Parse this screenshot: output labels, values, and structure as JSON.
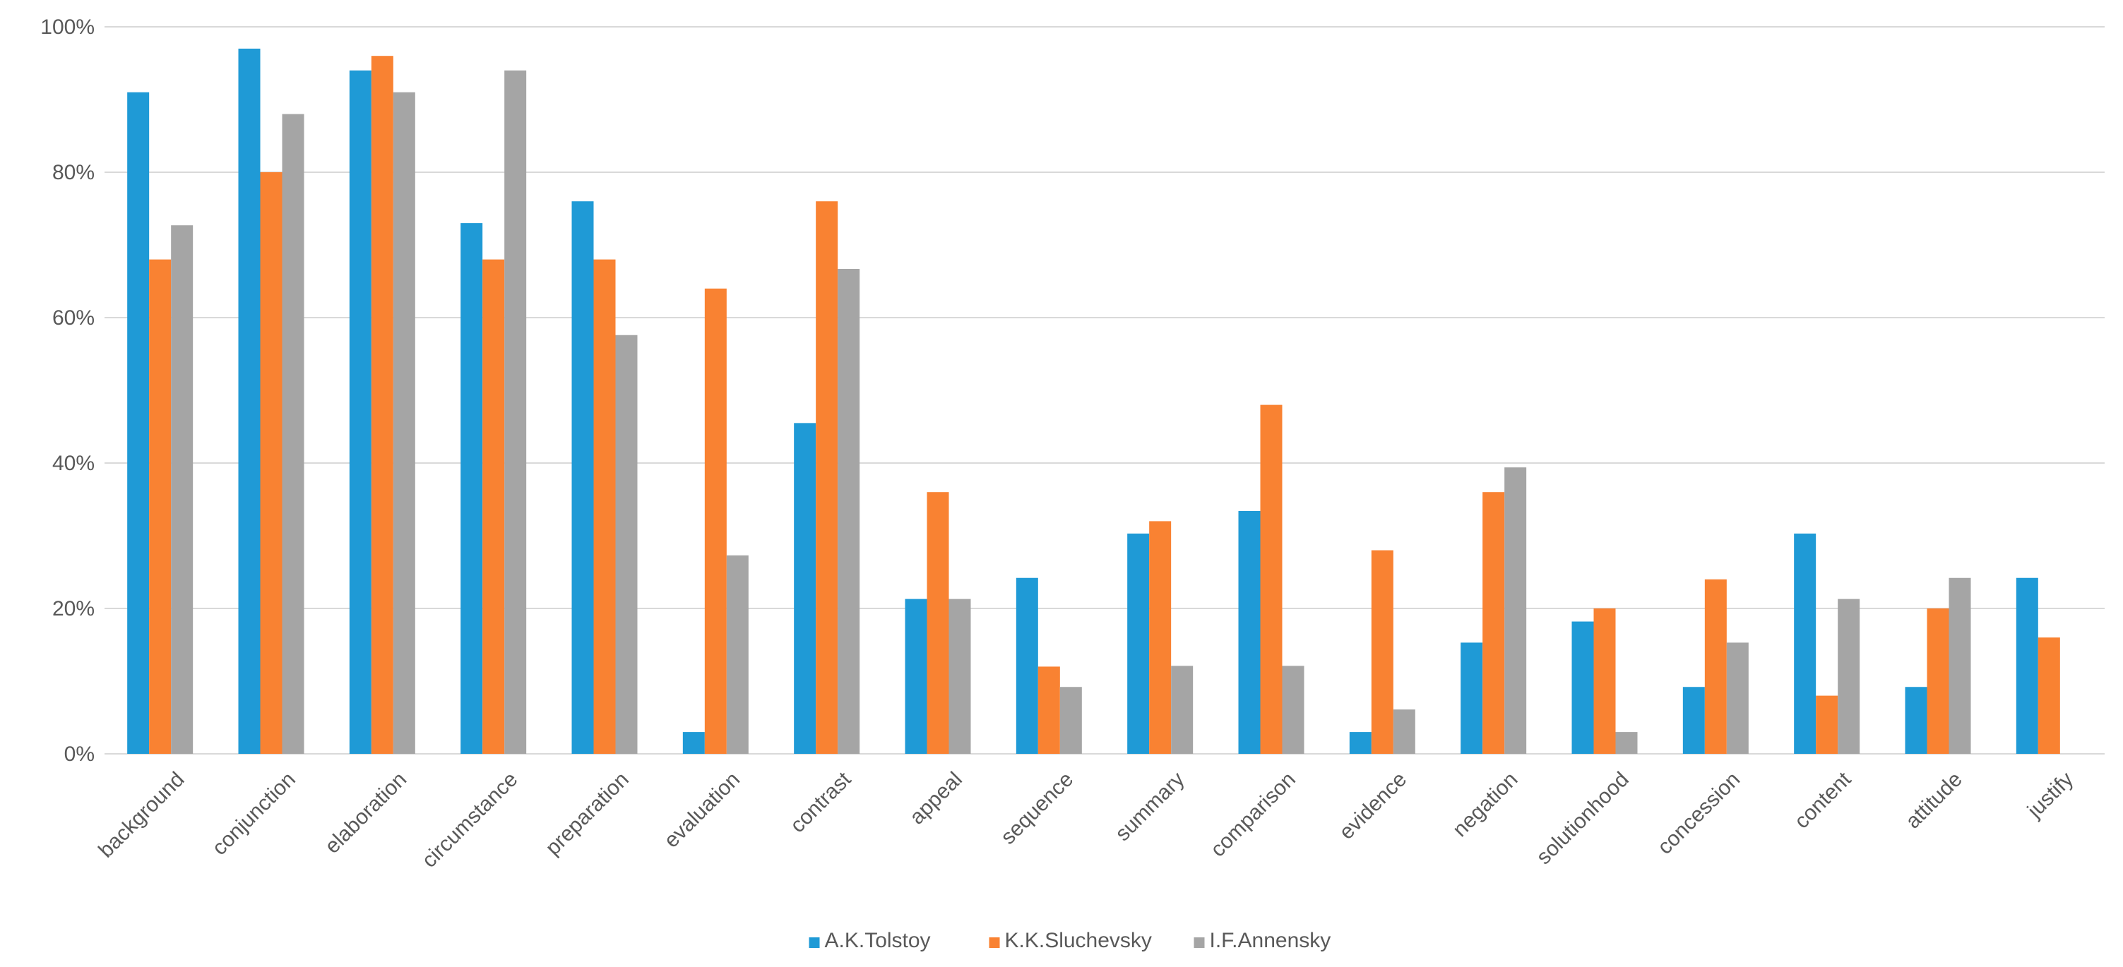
{
  "chart_data": {
    "type": "bar",
    "title": "",
    "xlabel": "",
    "ylabel": "",
    "ylim": [
      0,
      100
    ],
    "yticks": [
      "0%",
      "20%",
      "40%",
      "60%",
      "80%",
      "100%"
    ],
    "grid": true,
    "legend_position": "bottom-center",
    "categories": [
      "background",
      "conjunction",
      "elaboration",
      "circumstance",
      "preparation",
      "evaluation",
      "contrast",
      "appeal",
      "sequence",
      "summary",
      "comparison",
      "evidence",
      "negation",
      "solutionhood",
      "concession",
      "content",
      "attitude",
      "justify"
    ],
    "series": [
      {
        "name": "A.K.Tolstoy",
        "color": "#1f9ad6",
        "values": [
          91,
          97,
          94,
          73,
          76,
          3,
          45.5,
          21.3,
          24.2,
          30.3,
          33.4,
          3,
          15.3,
          18.2,
          9.2,
          30.3,
          9.2,
          24.2
        ]
      },
      {
        "name": "K.K.Sluchevsky",
        "color": "#f98232",
        "values": [
          68,
          80,
          96,
          68,
          68,
          64,
          76,
          36,
          12,
          32,
          48,
          28,
          36,
          20,
          24,
          8,
          20,
          16
        ]
      },
      {
        "name": "I.F.Annensky",
        "color": "#a5a5a5",
        "values": [
          72.7,
          88,
          91,
          94,
          57.6,
          27.3,
          66.7,
          21.3,
          9.2,
          12.1,
          12.1,
          6.1,
          39.4,
          3,
          15.3,
          21.3,
          24.2,
          0
        ]
      }
    ]
  }
}
